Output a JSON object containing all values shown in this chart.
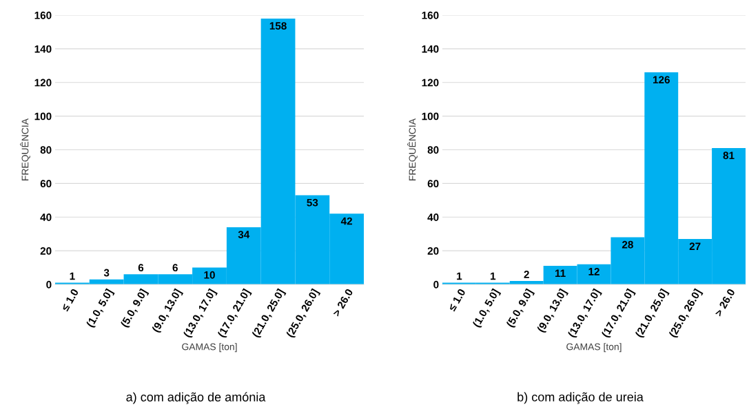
{
  "chart_data": [
    {
      "type": "bar",
      "xlabel": "GAMAS [ton]",
      "ylabel": "FREQUÊNCIA",
      "categories": [
        "≤ 1.0",
        "(1.0, 5.0]",
        "(5.0, 9.0]",
        "(9.0, 13.0]",
        "(13.0, 17.0]",
        "(17.0, 21.0]",
        "(21.0, 25.0]",
        "(25.0, 26.0]",
        "> 26.0"
      ],
      "values": [
        1,
        3,
        6,
        6,
        10,
        34,
        158,
        53,
        42
      ],
      "color": "#00b0f0",
      "ylim": [
        0,
        160
      ],
      "yticks": [
        0,
        20,
        40,
        60,
        80,
        100,
        120,
        140,
        160
      ],
      "grid": "y",
      "data_labels": true,
      "annotations": [
        "a) com adição de amónia"
      ]
    },
    {
      "type": "bar",
      "xlabel": "GAMAS [ton]",
      "ylabel": "FREQUÊNCIA",
      "categories": [
        "≤ 1.0",
        "(1.0, 5.0]",
        "(5.0, 9.0]",
        "(9.0, 13.0]",
        "(13.0, 17.0]",
        "(17.0, 21.0]",
        "(21.0, 25.0]",
        "(25.0, 26.0]",
        "> 26.0"
      ],
      "values": [
        1,
        1,
        2,
        11,
        12,
        28,
        126,
        27,
        81
      ],
      "color": "#00b0f0",
      "ylim": [
        0,
        160
      ],
      "yticks": [
        0,
        20,
        40,
        60,
        80,
        100,
        120,
        140,
        160
      ],
      "grid": "y",
      "data_labels": true,
      "annotations": [
        "b) com adição de ureia"
      ]
    }
  ]
}
